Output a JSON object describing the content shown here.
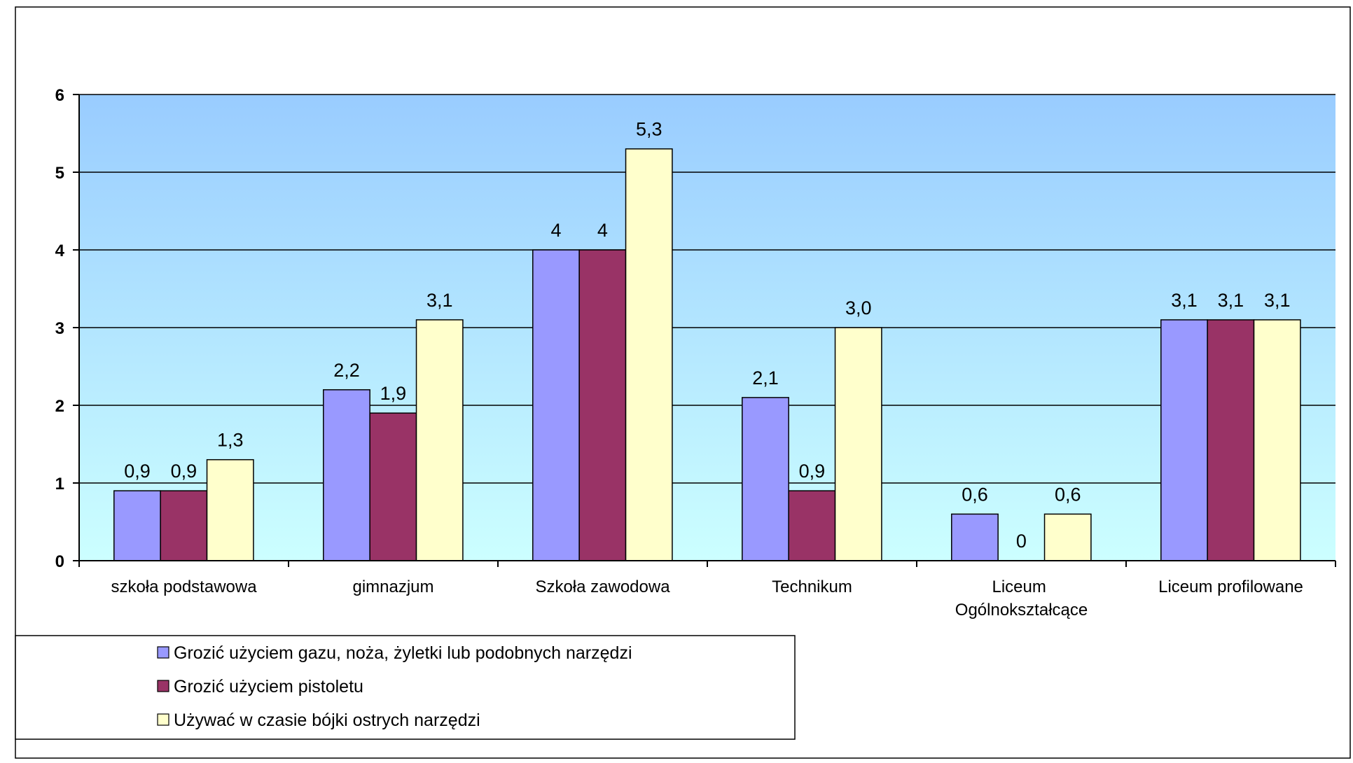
{
  "chart_data": {
    "type": "bar",
    "categories": [
      "szkoła podstawowa",
      "gimnazjum",
      "Szkoła zawodowa",
      "Technikum",
      "Liceum Ogólnokształcące",
      "Liceum profilowane"
    ],
    "series": [
      {
        "name": "Grozić użyciem gazu, noża, żyletki lub podobnych narzędzi",
        "color": "#9999FF",
        "values": [
          0.9,
          2.2,
          4,
          2.1,
          0.6,
          3.1
        ],
        "labels": [
          "0,9",
          "2,2",
          "4",
          "2,1",
          "0,6",
          "3,1"
        ]
      },
      {
        "name": "Grozić użyciem pistoletu",
        "color": "#993366",
        "values": [
          0.9,
          1.9,
          4,
          0.9,
          0,
          3.1
        ],
        "labels": [
          "0,9",
          "1,9",
          "4",
          "0,9",
          "0",
          "3,1"
        ]
      },
      {
        "name": "Używać w czasie bójki ostrych narzędzi",
        "color": "#FFFFCC",
        "values": [
          1.3,
          3.1,
          5.3,
          3.0,
          0.6,
          3.1
        ],
        "labels": [
          "1,3",
          "3,1",
          "5,3",
          "3,0",
          "0,6",
          "3,1"
        ]
      }
    ],
    "ylim": [
      0,
      6
    ],
    "yticks": [
      "0",
      "1",
      "2",
      "3",
      "4",
      "5",
      "6"
    ],
    "grid": true,
    "legend": "bottom-left",
    "plot_background": {
      "top": "#99CCFF",
      "bottom": "#CCFFFF"
    }
  }
}
